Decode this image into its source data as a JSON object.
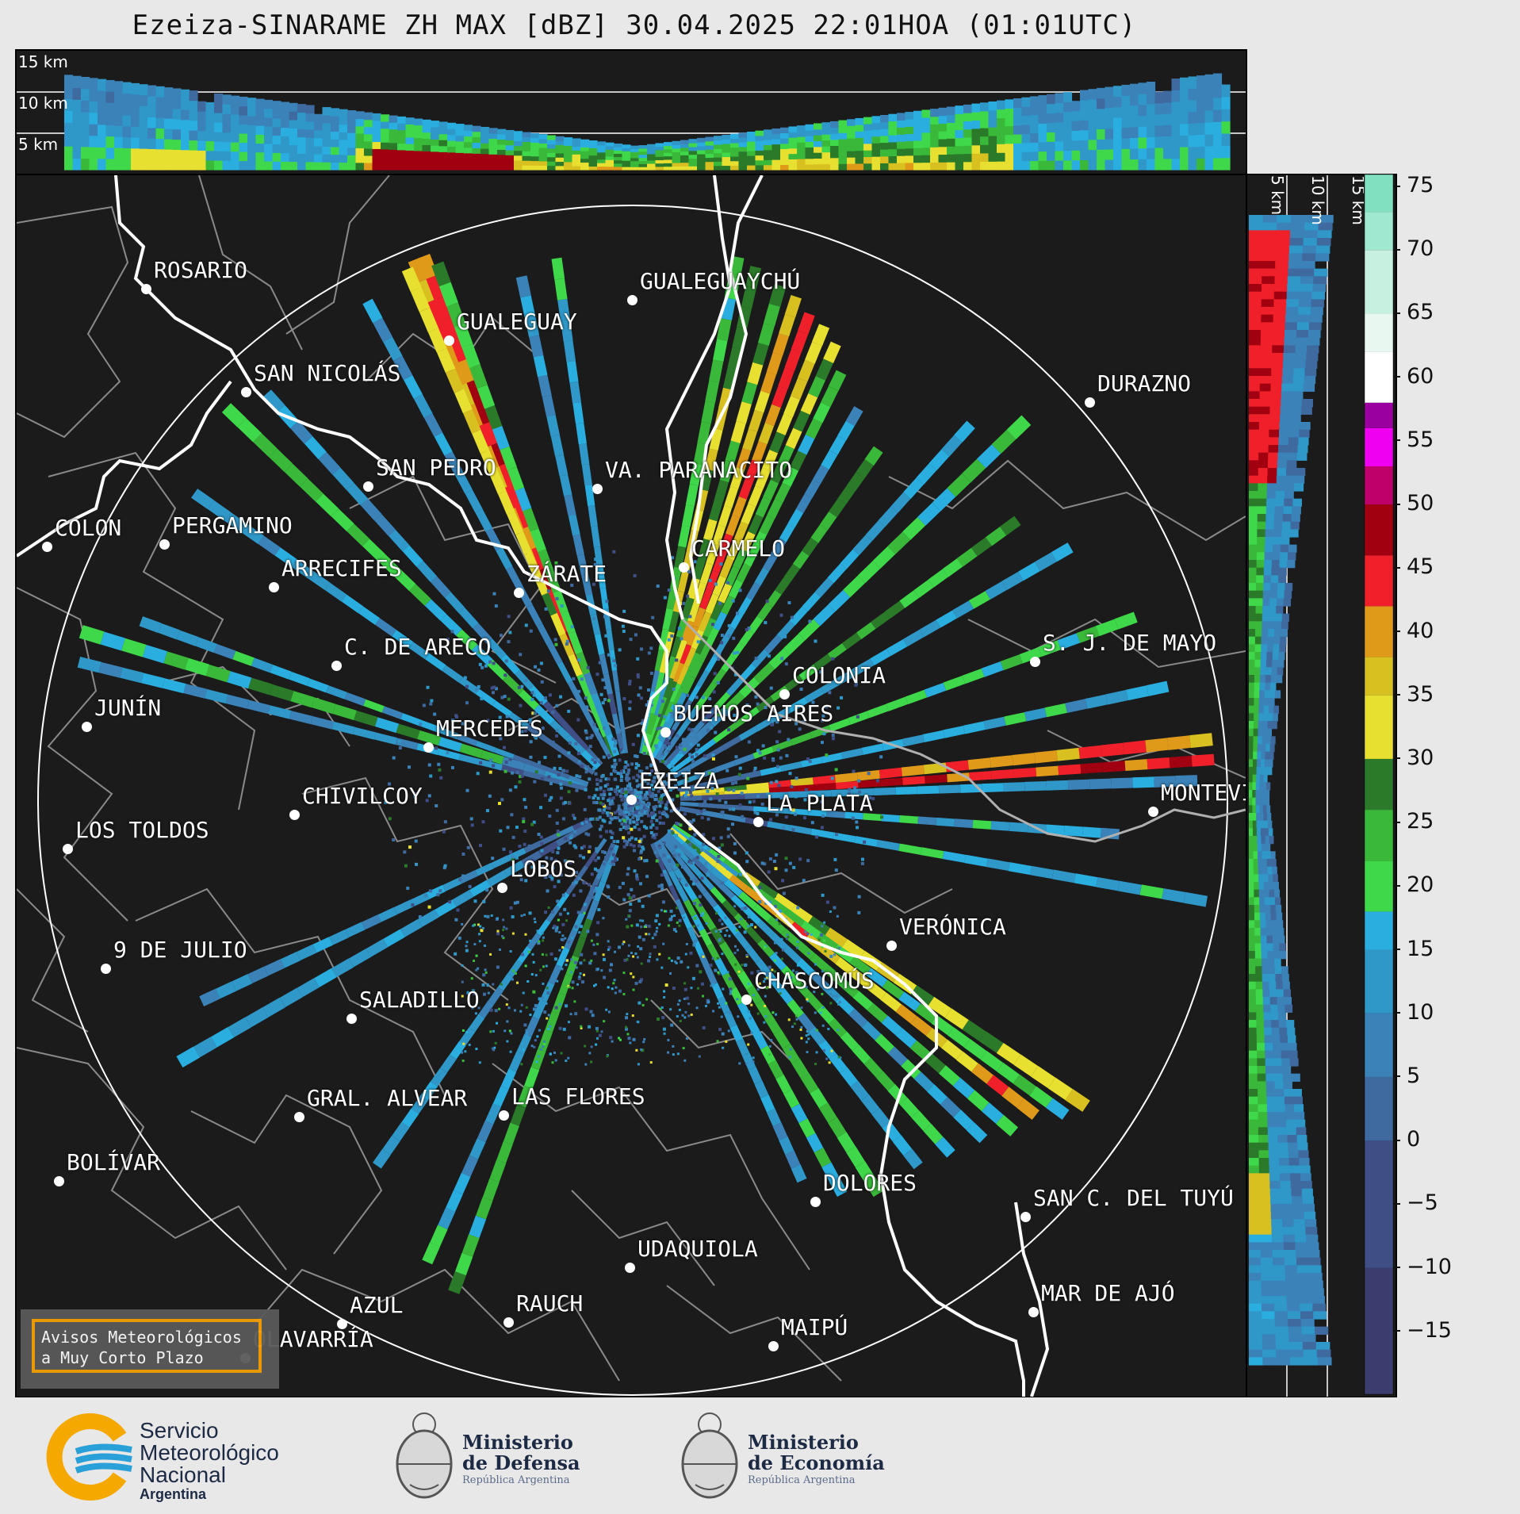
{
  "title": "Ezeiza-SINARAME ZH MAX [dBZ] 30.04.2025 22:01HOA (01:01UTC)",
  "altitude_labels": [
    "15 km",
    "10 km",
    "5 km"
  ],
  "side_altitude_labels": [
    "5 km",
    "10 km",
    "15 km"
  ],
  "colorbar": {
    "ticks": [
      "75",
      "70",
      "65",
      "60",
      "55",
      "50",
      "45",
      "40",
      "35",
      "30",
      "25",
      "20",
      "15",
      "10",
      "5",
      "0",
      "−5",
      "−10",
      "−15"
    ],
    "min": -20,
    "max": 76,
    "stops": [
      {
        "from": -20,
        "color": "#3a3d6e"
      },
      {
        "from": -10,
        "color": "#3f4f86"
      },
      {
        "from": 0,
        "color": "#3f6aa0"
      },
      {
        "from": 5,
        "color": "#3a82b8"
      },
      {
        "from": 10,
        "color": "#2f98c8"
      },
      {
        "from": 15,
        "color": "#2aaee0"
      },
      {
        "from": 18,
        "color": "#3fd84a"
      },
      {
        "from": 22,
        "color": "#39b83a"
      },
      {
        "from": 26,
        "color": "#2a7a2a"
      },
      {
        "from": 30,
        "color": "#e8e030"
      },
      {
        "from": 35,
        "color": "#d8c020"
      },
      {
        "from": 38,
        "color": "#e09a1a"
      },
      {
        "from": 42,
        "color": "#f0202a"
      },
      {
        "from": 46,
        "color": "#a00010"
      },
      {
        "from": 50,
        "color": "#c0006a"
      },
      {
        "from": 53,
        "color": "#f000f0"
      },
      {
        "from": 56,
        "color": "#9a00a0"
      },
      {
        "from": 58,
        "color": "#ffffff"
      },
      {
        "from": 62,
        "color": "#e8f8f0"
      },
      {
        "from": 65,
        "color": "#c8f0e0"
      },
      {
        "from": 70,
        "color": "#a0e8d0"
      },
      {
        "from": 73,
        "color": "#80e0c0"
      }
    ]
  },
  "cities": [
    {
      "name": "ROSARIO"
    },
    {
      "name": "GUALEGUAYCHÚ"
    },
    {
      "name": "GUALEGUAY"
    },
    {
      "name": "DURAZNO"
    },
    {
      "name": "SAN NICOLÁS"
    },
    {
      "name": "SAN PEDRO"
    },
    {
      "name": "VA. PARANACITO"
    },
    {
      "name": "COLON"
    },
    {
      "name": "PERGAMINO"
    },
    {
      "name": "CARMELO"
    },
    {
      "name": "ARRECIFES"
    },
    {
      "name": "ZÁRATE"
    },
    {
      "name": "S. J. DE MAYO"
    },
    {
      "name": "C. DE ARECO"
    },
    {
      "name": "COLONIA"
    },
    {
      "name": "JUNÍN"
    },
    {
      "name": "BUENOS AIRES"
    },
    {
      "name": "MERCEDES"
    },
    {
      "name": "EZEIZA"
    },
    {
      "name": "MONTEVIDEO"
    },
    {
      "name": "CHIVILCOY"
    },
    {
      "name": "LA PLATA"
    },
    {
      "name": "LOS TOLDOS"
    },
    {
      "name": "LOBOS"
    },
    {
      "name": "VERÓNICA"
    },
    {
      "name": "9 DE JULIO"
    },
    {
      "name": "CHASCOMÚS"
    },
    {
      "name": "SALADILLO"
    },
    {
      "name": "GRAL. ALVEAR"
    },
    {
      "name": "LAS FLORES"
    },
    {
      "name": "BOLÍVAR"
    },
    {
      "name": "DOLORES"
    },
    {
      "name": "SAN C. DEL TUYÚ"
    },
    {
      "name": "UDAQUIOLA"
    },
    {
      "name": "AZUL"
    },
    {
      "name": "RAUCH"
    },
    {
      "name": "MAR DE AJÓ"
    },
    {
      "name": "OLAVARRÍA"
    },
    {
      "name": "MAIPÚ"
    }
  ],
  "aviso": {
    "line1": "Avisos Meteorológicos",
    "line2": "a Muy Corto Plazo"
  },
  "footer": {
    "smn": {
      "line1": "Servicio",
      "line2": "Meteorológico",
      "line3": "Nacional",
      "line4": "Argentina"
    },
    "defensa": {
      "line1": "Ministerio",
      "line2": "de Defensa",
      "line3": "República Argentina"
    },
    "economia": {
      "line1": "Ministerio",
      "line2": "de Economía",
      "line3": "República Argentina"
    }
  },
  "colors": {
    "background": "#1b1b1b",
    "range_ring": "#ffffff",
    "coast": "#ffffff",
    "borders": "#8a8a8a",
    "aviso_border": "#f5a000"
  }
}
